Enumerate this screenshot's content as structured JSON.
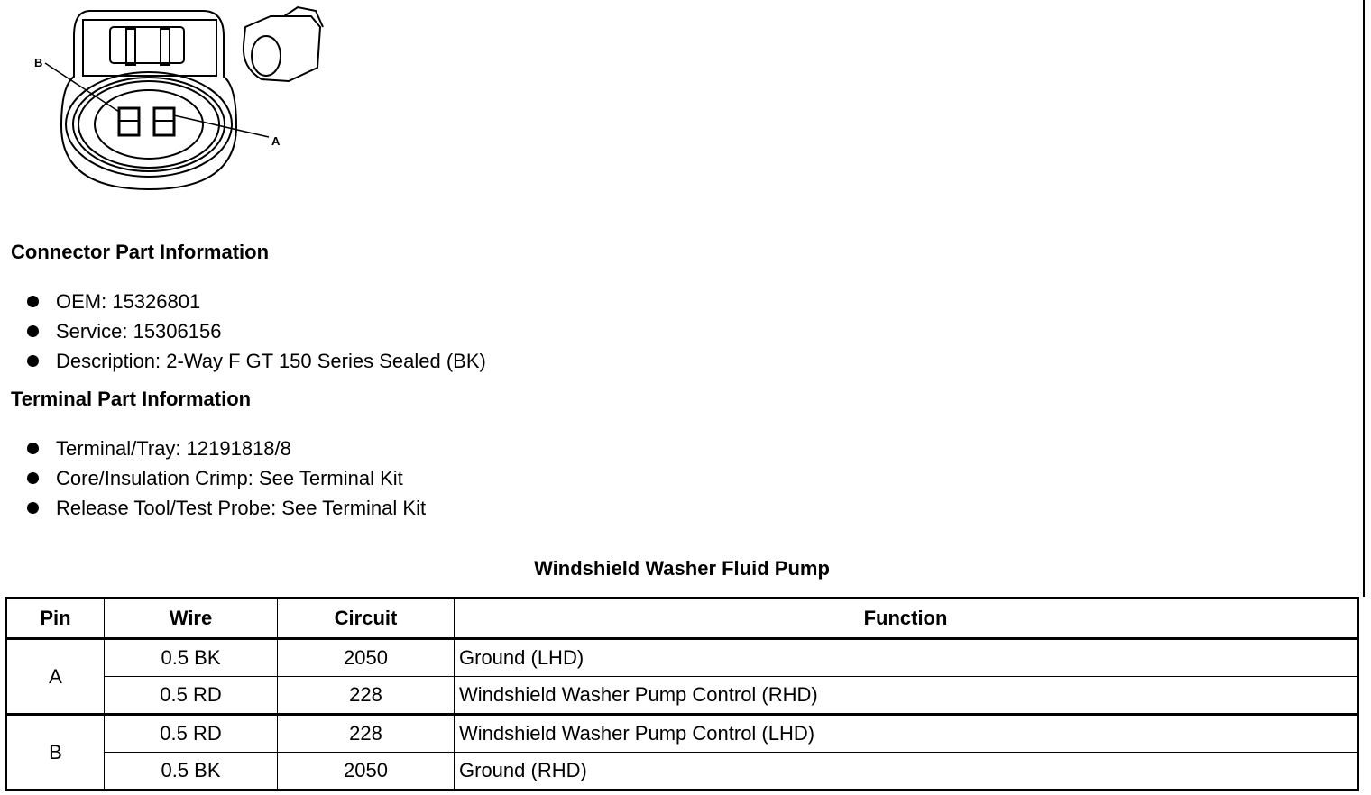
{
  "diagram": {
    "labels": {
      "pin_b": "B",
      "pin_a": "A"
    }
  },
  "connector_section": {
    "title": "Connector Part Information",
    "items": [
      "OEM: 15326801",
      "Service: 15306156",
      "Description: 2-Way F GT 150 Series Sealed (BK)"
    ]
  },
  "terminal_section": {
    "title": "Terminal Part Information",
    "items": [
      "Terminal/Tray: 12191818/8",
      "Core/Insulation Crimp: See Terminal Kit",
      "Release Tool/Test Probe: See Terminal Kit"
    ]
  },
  "table": {
    "caption": "Windshield Washer Fluid Pump",
    "headers": [
      "Pin",
      "Wire",
      "Circuit",
      "Function"
    ],
    "groups": [
      {
        "pin": "A",
        "rows": [
          {
            "wire": "0.5 BK",
            "circuit": "2050",
            "function": "Ground (LHD)"
          },
          {
            "wire": "0.5 RD",
            "circuit": "228",
            "function": "Windshield Washer Pump Control (RHD)"
          }
        ]
      },
      {
        "pin": "B",
        "rows": [
          {
            "wire": "0.5 RD",
            "circuit": "228",
            "function": "Windshield Washer Pump Control (LHD)"
          },
          {
            "wire": "0.5 BK",
            "circuit": "2050",
            "function": "Ground (RHD)"
          }
        ]
      }
    ]
  }
}
